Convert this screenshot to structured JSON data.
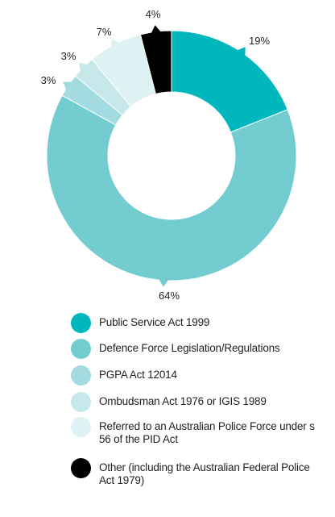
{
  "chart_data": {
    "type": "pie",
    "style": "donut",
    "slices": [
      {
        "label": "Public Service Act 1999",
        "value": 19,
        "data_label": "19%",
        "color": "#00b7bd"
      },
      {
        "label": "Defence Force Legislation/Regulations",
        "value": 64,
        "data_label": "64%",
        "color": "#73cdd0"
      },
      {
        "label": "PGPA Act 12014",
        "value": 3,
        "data_label": "3%",
        "color": "#a3dbe0"
      },
      {
        "label": "Ombudsman Act 1976 or IGIS 1989",
        "value": 3,
        "data_label": "3%",
        "color": "#c6e8eb"
      },
      {
        "label": "Referred to an Australian Police Force under s 56 of the PID Act",
        "value": 7,
        "data_label": "7%",
        "color": "#dff2f3"
      },
      {
        "label": "Other (including the Australian Federal Police Act 1979)",
        "value": 4,
        "data_label": "4%",
        "color": "#000000"
      }
    ],
    "legend_position": "bottom"
  },
  "legend": {
    "items": [
      {
        "label": "Public Service Act 1999",
        "color": "#00b7bd"
      },
      {
        "label": "Defence Force Legislation/Regulations",
        "color": "#73cdd0"
      },
      {
        "label": "PGPA Act 12014",
        "color": "#a3dbe0"
      },
      {
        "label": "Ombudsman Act 1976 or IGIS 1989",
        "color": "#c6e8eb"
      },
      {
        "label": "Referred to an Australian Police Force under s 56 of the PID Act",
        "color": "#dff2f3"
      },
      {
        "label": "Other (including the Australian Federal Police Act 1979)",
        "color": "#000000"
      }
    ]
  }
}
